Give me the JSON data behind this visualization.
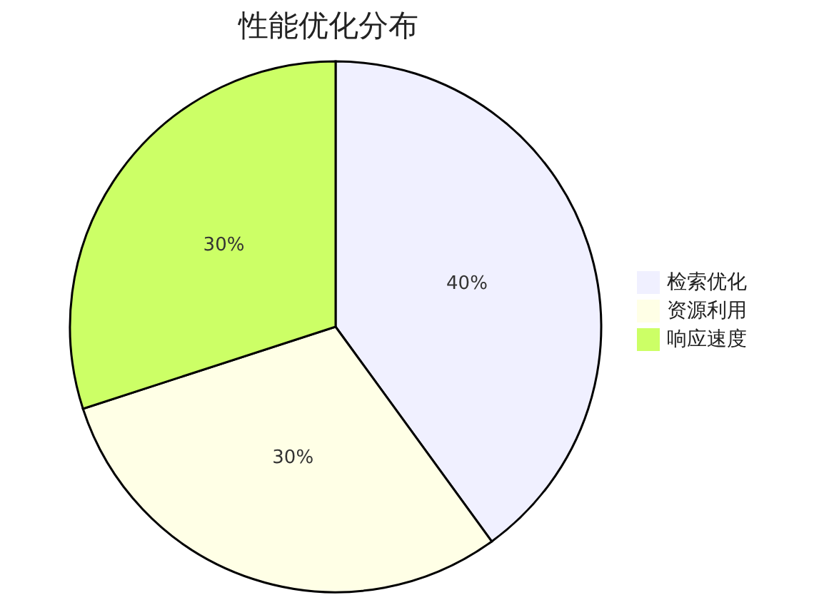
{
  "chart_data": {
    "type": "pie",
    "title": "性能优化分布",
    "categories": [
      "检索优化",
      "资源利用",
      "响应速度"
    ],
    "values": [
      40,
      30,
      30
    ],
    "value_labels": [
      "40%",
      "30%",
      "30%"
    ],
    "colors": [
      "#f0f0ff",
      "#ffffe6",
      "#ccff66"
    ],
    "legend": "right"
  }
}
